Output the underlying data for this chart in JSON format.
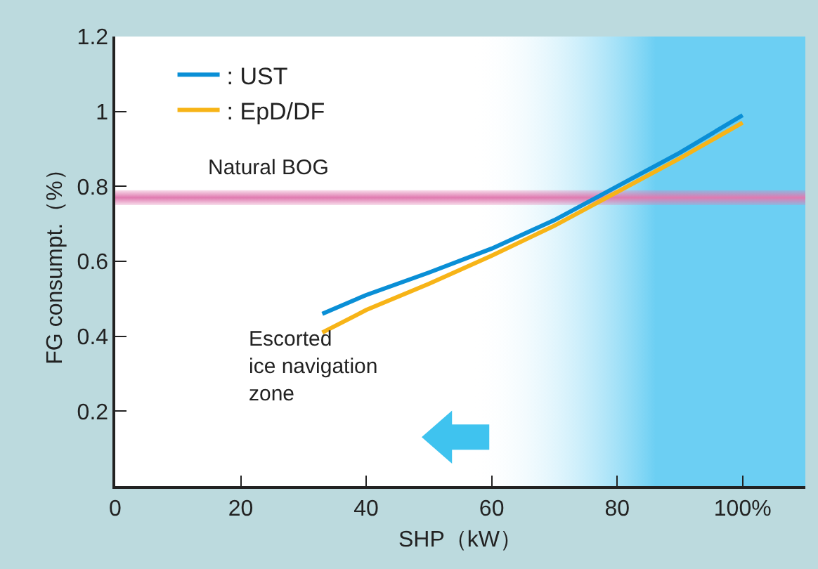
{
  "chart_data": {
    "type": "line",
    "xlabel": "SHP（kW）",
    "ylabel": "FG consumpt.（%）",
    "x": [
      33,
      40,
      50,
      60,
      70,
      80,
      90,
      100
    ],
    "series": [
      {
        "name": ": UST",
        "color": "#0a8fd6",
        "values": [
          0.46,
          0.51,
          0.57,
          0.634,
          0.71,
          0.8,
          0.89,
          0.99
        ]
      },
      {
        "name": ": EpD/DF",
        "color": "#f7b417",
        "values": [
          0.41,
          0.47,
          0.54,
          0.615,
          0.695,
          0.785,
          0.875,
          0.97
        ]
      }
    ],
    "xlim": [
      0,
      110
    ],
    "xticks": [
      0,
      20,
      40,
      60,
      80,
      {
        "value": 100,
        "label": "100%"
      }
    ],
    "ylim": [
      0,
      1.2
    ],
    "yticks": [
      {
        "value": 0.2,
        "label": "0.2"
      },
      {
        "value": 0.4,
        "label": "0.4"
      },
      {
        "value": 0.6,
        "label": "0.6"
      },
      {
        "value": 0.8,
        "label": "0.8"
      },
      {
        "value": 1,
        "label": "1"
      },
      {
        "value": 1.2,
        "label": "1.2"
      }
    ],
    "bands": [
      {
        "axis": "x",
        "from": 57,
        "to": 110,
        "color": "#6ccff3"
      },
      {
        "axis": "y",
        "from": 0.75,
        "to": 0.79,
        "label": "Natural BOG",
        "color": "#e07ab0"
      }
    ],
    "annotations": [
      "Escorted\nice navigation\nzone"
    ],
    "legend": "top left",
    "marker": "none",
    "line_style": "solid"
  }
}
